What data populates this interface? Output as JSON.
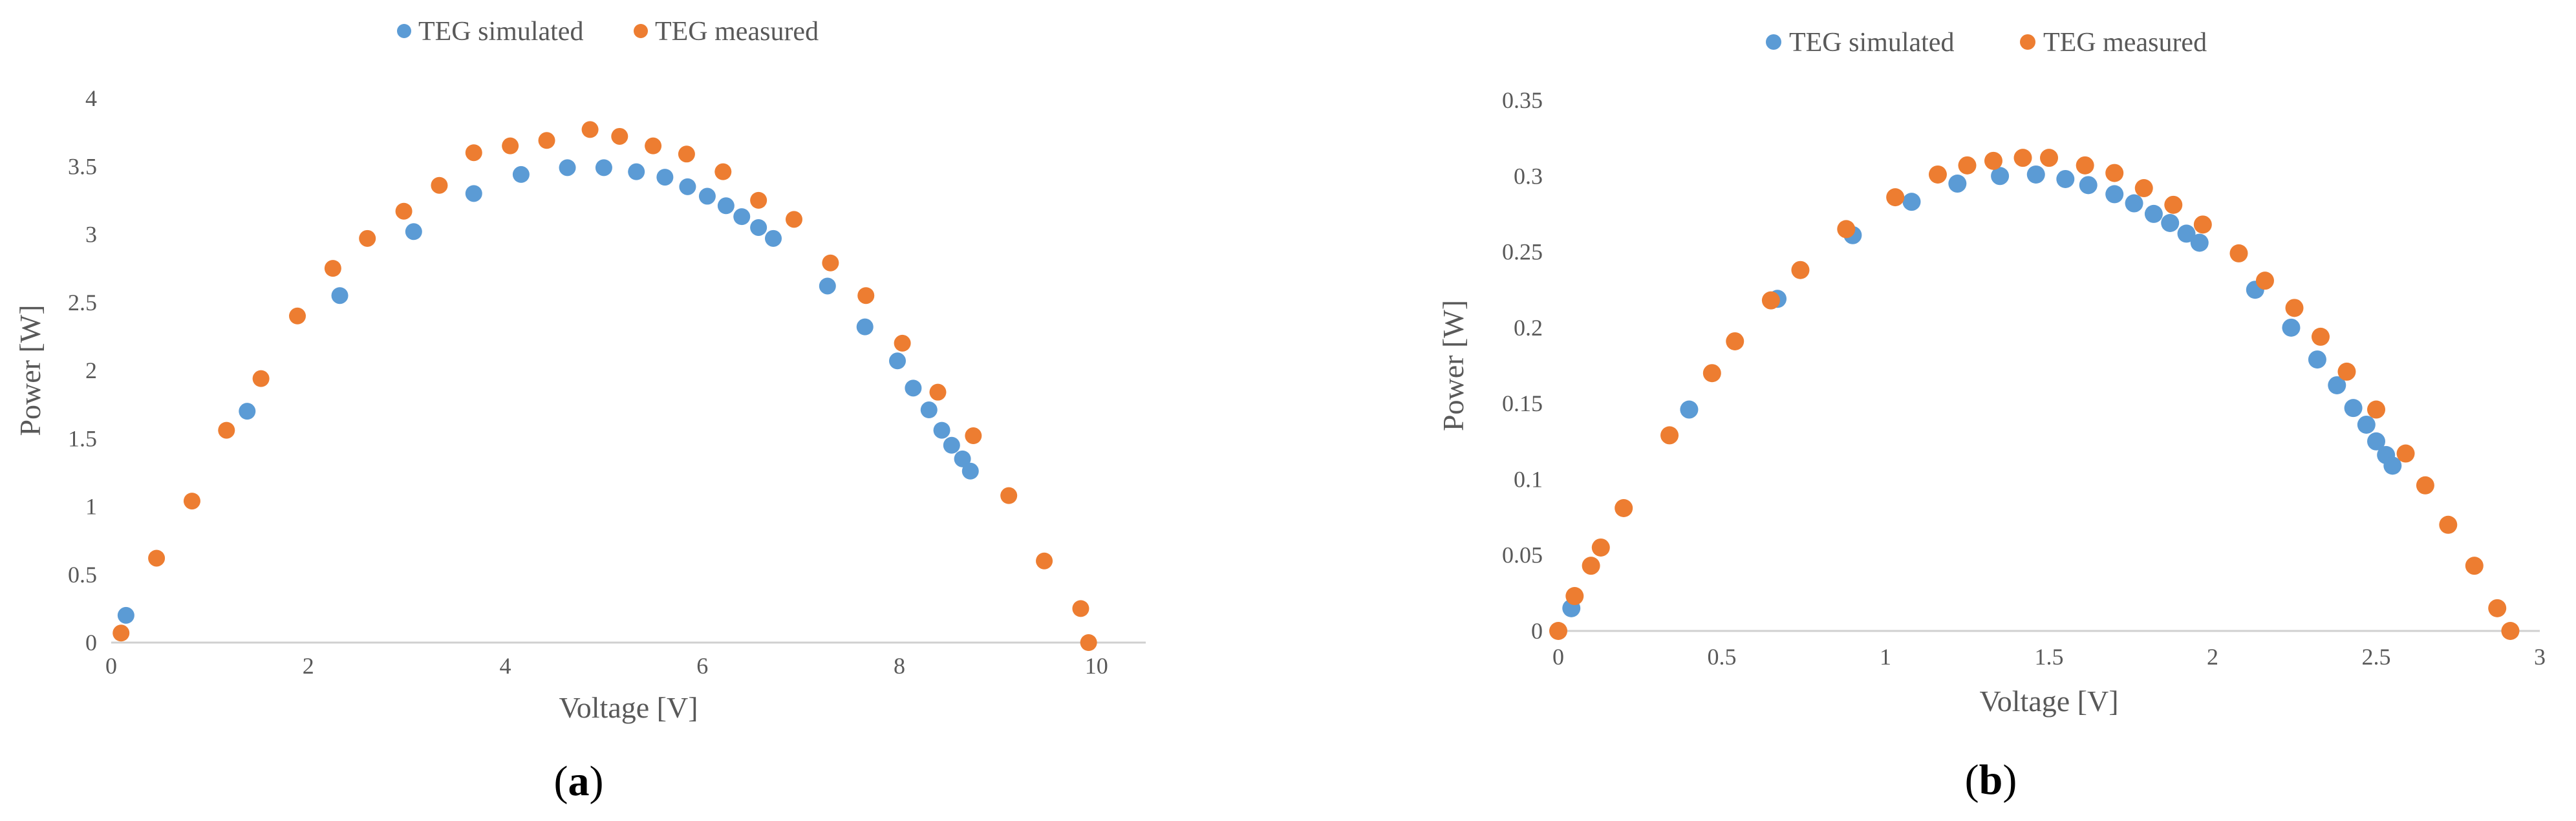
{
  "colors": {
    "simulated": "#5B9BD5",
    "measured": "#ED7D31"
  },
  "chart_data": [
    {
      "type": "scatter",
      "panel_label": "a",
      "xlabel": "Voltage [V]",
      "ylabel": "Power [W]",
      "xlim": [
        0,
        10.5
      ],
      "ylim": [
        0,
        4
      ],
      "xticks": [
        0,
        2,
        4,
        6,
        8,
        10
      ],
      "xtick_labels": [
        "0",
        "2",
        "4",
        "6",
        "8",
        "10"
      ],
      "yticks": [
        0,
        0.5,
        1,
        1.5,
        2,
        2.5,
        3,
        3.5,
        4
      ],
      "ytick_labels": [
        "0",
        "0.5",
        "1",
        "1.5",
        "2",
        "2.5",
        "3",
        "3.5",
        "4"
      ],
      "grid": false,
      "legend_position": "top",
      "series": [
        {
          "name": "TEG simulated",
          "color": "#5B9BD5",
          "points": [
            [
              0.15,
              0.2
            ],
            [
              1.38,
              1.7
            ],
            [
              2.32,
              2.55
            ],
            [
              3.07,
              3.02
            ],
            [
              3.68,
              3.3
            ],
            [
              4.16,
              3.44
            ],
            [
              4.63,
              3.49
            ],
            [
              5.0,
              3.49
            ],
            [
              5.33,
              3.46
            ],
            [
              5.62,
              3.42
            ],
            [
              5.85,
              3.35
            ],
            [
              6.05,
              3.28
            ],
            [
              6.24,
              3.21
            ],
            [
              6.4,
              3.13
            ],
            [
              6.57,
              3.05
            ],
            [
              6.72,
              2.97
            ],
            [
              7.27,
              2.62
            ],
            [
              7.65,
              2.32
            ],
            [
              7.98,
              2.07
            ],
            [
              8.14,
              1.87
            ],
            [
              8.3,
              1.71
            ],
            [
              8.43,
              1.56
            ],
            [
              8.53,
              1.45
            ],
            [
              8.64,
              1.35
            ],
            [
              8.72,
              1.26
            ]
          ]
        },
        {
          "name": "TEG measured",
          "color": "#ED7D31",
          "points": [
            [
              0.1,
              0.07
            ],
            [
              0.46,
              0.62
            ],
            [
              0.82,
              1.04
            ],
            [
              1.17,
              1.56
            ],
            [
              1.52,
              1.94
            ],
            [
              1.89,
              2.4
            ],
            [
              2.25,
              2.75
            ],
            [
              2.6,
              2.97
            ],
            [
              2.97,
              3.17
            ],
            [
              3.33,
              3.36
            ],
            [
              3.68,
              3.6
            ],
            [
              4.05,
              3.65
            ],
            [
              4.42,
              3.69
            ],
            [
              4.86,
              3.77
            ],
            [
              5.16,
              3.72
            ],
            [
              5.5,
              3.65
            ],
            [
              5.84,
              3.59
            ],
            [
              6.21,
              3.46
            ],
            [
              6.57,
              3.25
            ],
            [
              6.93,
              3.11
            ],
            [
              7.3,
              2.79
            ],
            [
              7.66,
              2.55
            ],
            [
              8.03,
              2.2
            ],
            [
              8.39,
              1.84
            ],
            [
              8.75,
              1.52
            ],
            [
              9.11,
              1.08
            ],
            [
              9.47,
              0.6
            ],
            [
              9.84,
              0.25
            ],
            [
              9.92,
              0.0
            ]
          ]
        }
      ]
    },
    {
      "type": "scatter",
      "panel_label": "b",
      "xlabel": "Voltage [V]",
      "ylabel": "Power [W]",
      "xlim": [
        0,
        3
      ],
      "ylim": [
        0,
        0.35
      ],
      "xticks": [
        0,
        0.5,
        1,
        1.5,
        2,
        2.5,
        3
      ],
      "xtick_labels": [
        "0",
        "0.5",
        "1",
        "1.5",
        "2",
        "2.5",
        "3"
      ],
      "yticks": [
        0,
        0.05,
        0.1,
        0.15,
        0.2,
        0.25,
        0.3,
        0.35
      ],
      "ytick_labels": [
        "0",
        "0.05",
        "0.1",
        "0.15",
        "0.2",
        "0.25",
        "0.3",
        "0.35"
      ],
      "grid": false,
      "legend_position": "top",
      "series": [
        {
          "name": "TEG simulated",
          "color": "#5B9BD5",
          "points": [
            [
              0.04,
              0.015
            ],
            [
              0.4,
              0.146
            ],
            [
              0.67,
              0.219
            ],
            [
              0.9,
              0.261
            ],
            [
              1.08,
              0.283
            ],
            [
              1.22,
              0.295
            ],
            [
              1.35,
              0.3
            ],
            [
              1.46,
              0.301
            ],
            [
              1.55,
              0.298
            ],
            [
              1.62,
              0.294
            ],
            [
              1.7,
              0.288
            ],
            [
              1.76,
              0.282
            ],
            [
              1.82,
              0.275
            ],
            [
              1.87,
              0.269
            ],
            [
              1.92,
              0.262
            ],
            [
              1.96,
              0.256
            ],
            [
              2.13,
              0.225
            ],
            [
              2.24,
              0.2
            ],
            [
              2.32,
              0.179
            ],
            [
              2.38,
              0.162
            ],
            [
              2.43,
              0.147
            ],
            [
              2.47,
              0.136
            ],
            [
              2.5,
              0.125
            ],
            [
              2.53,
              0.116
            ],
            [
              2.55,
              0.109
            ]
          ]
        },
        {
          "name": "TEG measured",
          "color": "#ED7D31",
          "points": [
            [
              0.0,
              0.0
            ],
            [
              0.05,
              0.023
            ],
            [
              0.1,
              0.043
            ],
            [
              0.13,
              0.055
            ],
            [
              0.2,
              0.081
            ],
            [
              0.34,
              0.129
            ],
            [
              0.47,
              0.17
            ],
            [
              0.54,
              0.191
            ],
            [
              0.65,
              0.218
            ],
            [
              0.74,
              0.238
            ],
            [
              0.88,
              0.265
            ],
            [
              1.03,
              0.286
            ],
            [
              1.16,
              0.301
            ],
            [
              1.25,
              0.307
            ],
            [
              1.33,
              0.31
            ],
            [
              1.42,
              0.312
            ],
            [
              1.5,
              0.312
            ],
            [
              1.61,
              0.307
            ],
            [
              1.7,
              0.302
            ],
            [
              1.79,
              0.292
            ],
            [
              1.88,
              0.281
            ],
            [
              1.97,
              0.268
            ],
            [
              2.08,
              0.249
            ],
            [
              2.16,
              0.231
            ],
            [
              2.25,
              0.213
            ],
            [
              2.33,
              0.194
            ],
            [
              2.41,
              0.171
            ],
            [
              2.5,
              0.146
            ],
            [
              2.59,
              0.117
            ],
            [
              2.65,
              0.096
            ],
            [
              2.72,
              0.07
            ],
            [
              2.8,
              0.043
            ],
            [
              2.87,
              0.015
            ],
            [
              2.91,
              0.0
            ]
          ]
        }
      ]
    }
  ]
}
